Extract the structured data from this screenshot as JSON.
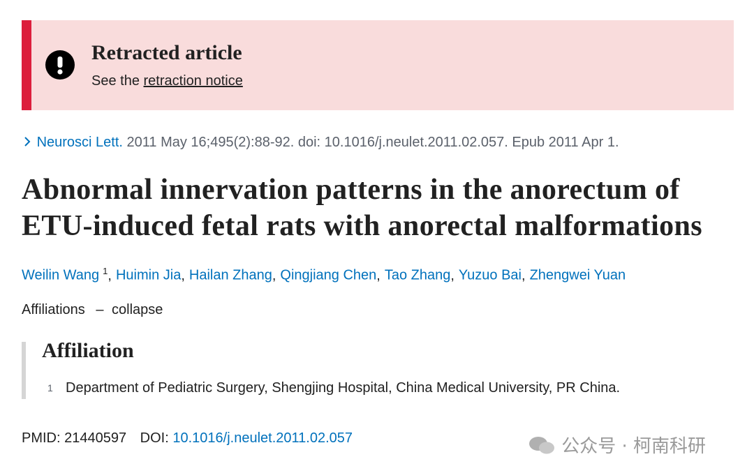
{
  "banner": {
    "title": "Retracted article",
    "text": "See the",
    "link": "retraction notice"
  },
  "citation": {
    "journal": "Neurosci Lett.",
    "details": "2011 May 16;495(2):88-92. doi: 10.1016/j.neulet.2011.02.057. Epub 2011 Apr 1."
  },
  "title": "Abnormal innervation patterns in the anorectum of ETU-induced fetal rats with anorectal malformations",
  "authors": {
    "separator": ",",
    "names": [
      {
        "name": "Weilin Wang",
        "affiliation": "1"
      },
      {
        "name": "Huimin Jia"
      },
      {
        "name": "Hailan Zhang"
      },
      {
        "name": "Qingjiang Chen"
      },
      {
        "name": "Tao Zhang"
      },
      {
        "name": "Yuzuo Bai"
      },
      {
        "name": "Zhengwei Yuan"
      }
    ]
  },
  "affiliations_toggle": {
    "label": "Affiliations",
    "icon": "–",
    "action": "collapse"
  },
  "affiliation": {
    "heading": "Affiliation",
    "items": [
      {
        "number": "1",
        "text": "Department of Pediatric Surgery, Shengjing Hospital, China Medical University, PR China."
      }
    ]
  },
  "identifiers": {
    "pmid_label": "PMID:",
    "pmid": "21440597",
    "doi_label": "DOI:",
    "doi": "10.1016/j.neulet.2011.02.057"
  },
  "watermark": "公众号 · 柯南科研"
}
